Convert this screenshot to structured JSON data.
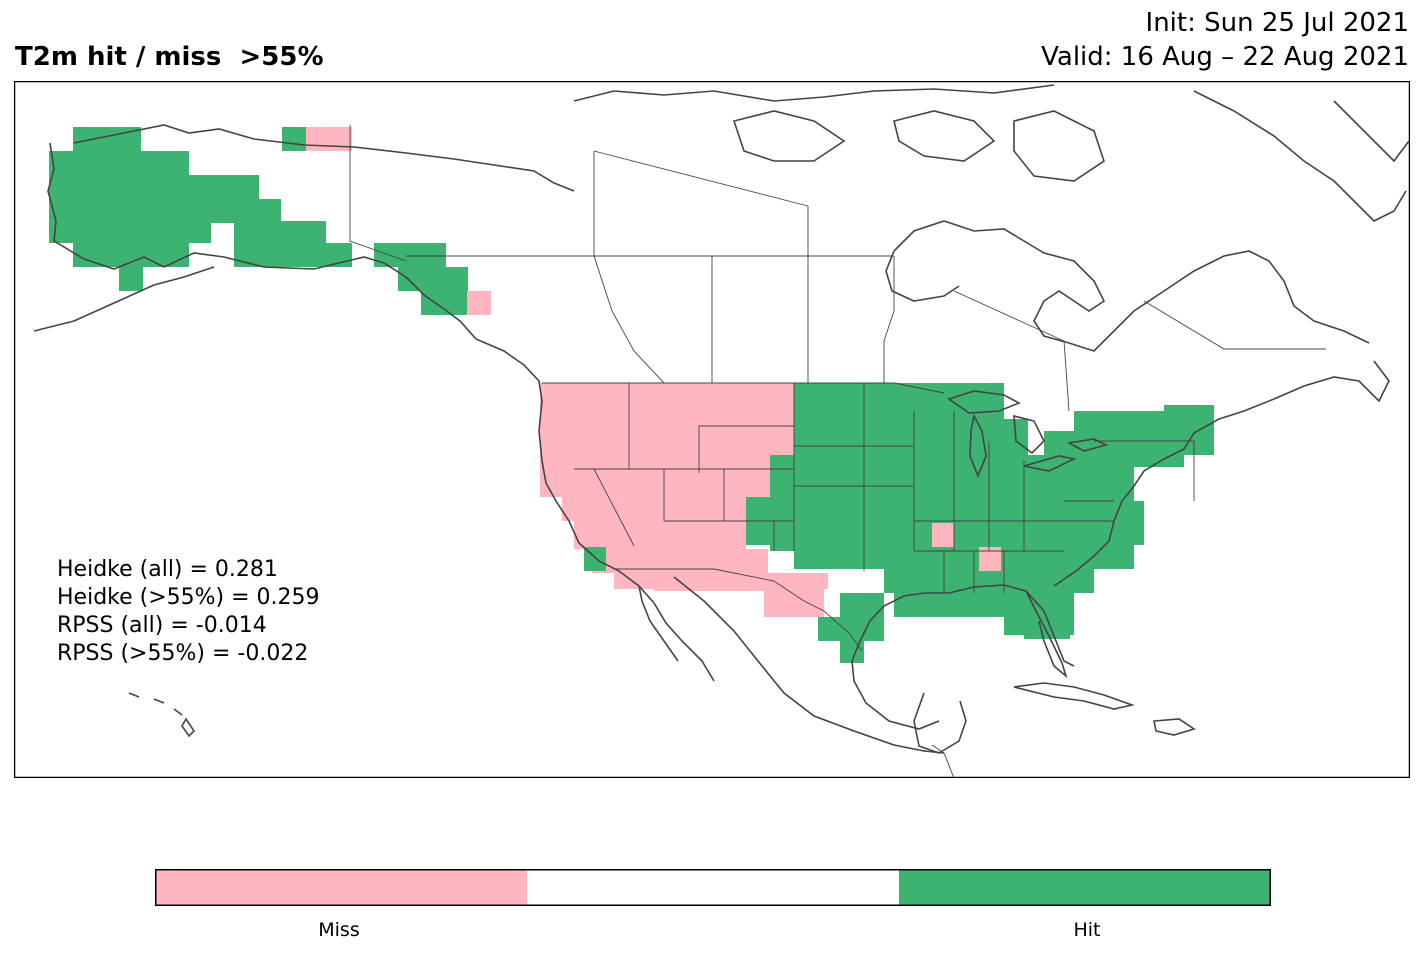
{
  "header": {
    "title": "T2m hit / miss  >55%",
    "init": "Init: Sun 25 Jul 2021",
    "valid": "Valid: 16 Aug – 22 Aug 2021"
  },
  "stats": {
    "heidke_all": "Heidke (all) = 0.281",
    "heidke_55": "Heidke (>55%) = 0.259",
    "rpss_all": "RPSS (all) = -0.014",
    "rpss_55": "RPSS (>55%) = -0.022"
  },
  "colorbar": {
    "labels": [
      "Miss",
      "Hit"
    ],
    "colors": {
      "miss": "#ffb6c1",
      "neutral": "#ffffff",
      "hit": "#3cb371"
    }
  },
  "colors": {
    "miss": "#ffb6c1",
    "hit": "#3cb371",
    "coastline": "#444444",
    "frame": "#000000"
  },
  "map_data": {
    "region": "North America",
    "categories": [
      "Miss",
      "Hit"
    ],
    "hit_regions": [
      "Alaska",
      "Southeast Alaska",
      "Northern Plains",
      "Midwest",
      "Great Lakes",
      "Northeast",
      "Mid-Atlantic",
      "Southeast",
      "Florida",
      "Texas Gulf Coast",
      "Southern California coast"
    ],
    "miss_regions": [
      "Pacific Northwest",
      "Northern Rockies",
      "Great Basin",
      "California",
      "Southwest",
      "New Mexico",
      "West Texas",
      "Yukon border",
      "British Columbia coast"
    ]
  }
}
